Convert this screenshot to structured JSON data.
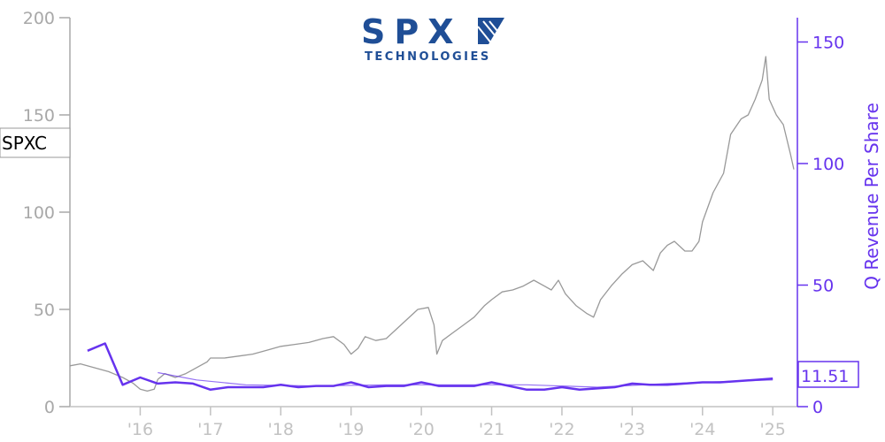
{
  "logo": {
    "name": "SPX",
    "sub": "TECHNOLOGIES",
    "color": "#1f4e96"
  },
  "colors": {
    "price_line": "#999999",
    "revenue_line": "#6633ee",
    "left_axis": "#a8a8a8",
    "bottom_axis": "#c2c2c2"
  },
  "chart_data": {
    "type": "line",
    "ticker": "SPXC",
    "last_value_label": "11.51",
    "x_axis": {
      "range": [
        2015.0,
        2025.35
      ],
      "ticks": [
        2016,
        2017,
        2018,
        2019,
        2020,
        2021,
        2022,
        2023,
        2024,
        2025
      ],
      "tick_labels": [
        "'16",
        "'17",
        "'18",
        "'19",
        "'20",
        "'21",
        "'22",
        "'23",
        "'24",
        "'25"
      ]
    },
    "y_left": {
      "range": [
        0,
        200
      ],
      "ticks": [
        0,
        50,
        100,
        150,
        200
      ],
      "tick_labels": [
        "0",
        "50",
        "100",
        "150",
        "200"
      ]
    },
    "y_right": {
      "label": "Q Revenue Per Share",
      "range": [
        0,
        160
      ],
      "ticks": [
        0,
        50,
        100,
        150
      ],
      "tick_labels": [
        "0",
        "50",
        "100",
        "150"
      ]
    },
    "series": [
      {
        "axis": "left",
        "points": [
          [
            2015.0,
            21
          ],
          [
            2015.15,
            22
          ],
          [
            2015.35,
            20
          ],
          [
            2015.55,
            18
          ],
          [
            2015.75,
            15
          ],
          [
            2015.9,
            12
          ],
          [
            2016.0,
            9
          ],
          [
            2016.1,
            8
          ],
          [
            2016.2,
            9
          ],
          [
            2016.25,
            14
          ],
          [
            2016.35,
            17
          ],
          [
            2016.5,
            15
          ],
          [
            2016.65,
            17
          ],
          [
            2016.75,
            19
          ],
          [
            2016.85,
            21
          ],
          [
            2016.95,
            23
          ],
          [
            2017.0,
            25
          ],
          [
            2017.2,
            25
          ],
          [
            2017.4,
            26
          ],
          [
            2017.6,
            27
          ],
          [
            2017.8,
            29
          ],
          [
            2018.0,
            31
          ],
          [
            2018.2,
            32
          ],
          [
            2018.4,
            33
          ],
          [
            2018.6,
            35
          ],
          [
            2018.75,
            36
          ],
          [
            2018.9,
            32
          ],
          [
            2019.0,
            27
          ],
          [
            2019.1,
            30
          ],
          [
            2019.2,
            36
          ],
          [
            2019.35,
            34
          ],
          [
            2019.5,
            35
          ],
          [
            2019.65,
            40
          ],
          [
            2019.8,
            45
          ],
          [
            2019.95,
            50
          ],
          [
            2020.1,
            51
          ],
          [
            2020.18,
            42
          ],
          [
            2020.22,
            27
          ],
          [
            2020.3,
            34
          ],
          [
            2020.45,
            38
          ],
          [
            2020.6,
            42
          ],
          [
            2020.75,
            46
          ],
          [
            2020.9,
            52
          ],
          [
            2021.0,
            55
          ],
          [
            2021.15,
            59
          ],
          [
            2021.3,
            60
          ],
          [
            2021.45,
            62
          ],
          [
            2021.6,
            65
          ],
          [
            2021.75,
            62
          ],
          [
            2021.85,
            60
          ],
          [
            2021.95,
            65
          ],
          [
            2022.05,
            58
          ],
          [
            2022.2,
            52
          ],
          [
            2022.35,
            48
          ],
          [
            2022.45,
            46
          ],
          [
            2022.55,
            55
          ],
          [
            2022.7,
            62
          ],
          [
            2022.85,
            68
          ],
          [
            2023.0,
            73
          ],
          [
            2023.15,
            75
          ],
          [
            2023.3,
            70
          ],
          [
            2023.4,
            79
          ],
          [
            2023.5,
            83
          ],
          [
            2023.6,
            85
          ],
          [
            2023.75,
            80
          ],
          [
            2023.85,
            80
          ],
          [
            2023.95,
            85
          ],
          [
            2024.0,
            95
          ],
          [
            2024.15,
            110
          ],
          [
            2024.3,
            120
          ],
          [
            2024.4,
            140
          ],
          [
            2024.55,
            148
          ],
          [
            2024.65,
            150
          ],
          [
            2024.75,
            158
          ],
          [
            2024.85,
            168
          ],
          [
            2024.9,
            180
          ],
          [
            2024.95,
            158
          ],
          [
            2025.05,
            150
          ],
          [
            2025.15,
            145
          ],
          [
            2025.25,
            130
          ],
          [
            2025.3,
            122
          ]
        ]
      },
      {
        "axis": "right",
        "points": [
          [
            2015.25,
            23
          ],
          [
            2015.5,
            26
          ],
          [
            2015.75,
            9
          ],
          [
            2016.0,
            12
          ],
          [
            2016.25,
            9.5
          ],
          [
            2016.5,
            10
          ],
          [
            2016.75,
            9.5
          ],
          [
            2017.0,
            7
          ],
          [
            2017.25,
            8
          ],
          [
            2017.5,
            8
          ],
          [
            2017.75,
            8
          ],
          [
            2018.0,
            9
          ],
          [
            2018.25,
            8
          ],
          [
            2018.5,
            8.5
          ],
          [
            2018.75,
            8.5
          ],
          [
            2019.0,
            10
          ],
          [
            2019.25,
            8
          ],
          [
            2019.5,
            8.5
          ],
          [
            2019.75,
            8.5
          ],
          [
            2020.0,
            10
          ],
          [
            2020.25,
            8.5
          ],
          [
            2020.5,
            8.5
          ],
          [
            2020.75,
            8.5
          ],
          [
            2021.0,
            10
          ],
          [
            2021.25,
            8.5
          ],
          [
            2021.5,
            7
          ],
          [
            2021.75,
            7
          ],
          [
            2022.0,
            8
          ],
          [
            2022.25,
            7
          ],
          [
            2022.5,
            7.5
          ],
          [
            2022.75,
            8
          ],
          [
            2023.0,
            9.5
          ],
          [
            2023.25,
            9
          ],
          [
            2023.5,
            9
          ],
          [
            2023.75,
            9.5
          ],
          [
            2024.0,
            10
          ],
          [
            2024.25,
            10
          ],
          [
            2024.5,
            10.5
          ],
          [
            2024.75,
            11
          ],
          [
            2025.0,
            11.51
          ]
        ]
      },
      {
        "axis": "right",
        "points": [
          [
            2016.25,
            14
          ],
          [
            2016.8,
            11
          ],
          [
            2017.5,
            9
          ],
          [
            2018.5,
            8.5
          ],
          [
            2019.5,
            9
          ],
          [
            2020.5,
            9
          ],
          [
            2021.5,
            9
          ],
          [
            2022.5,
            8
          ],
          [
            2023.5,
            9.5
          ],
          [
            2024.5,
            10.5
          ],
          [
            2025.0,
            11
          ]
        ]
      }
    ]
  }
}
